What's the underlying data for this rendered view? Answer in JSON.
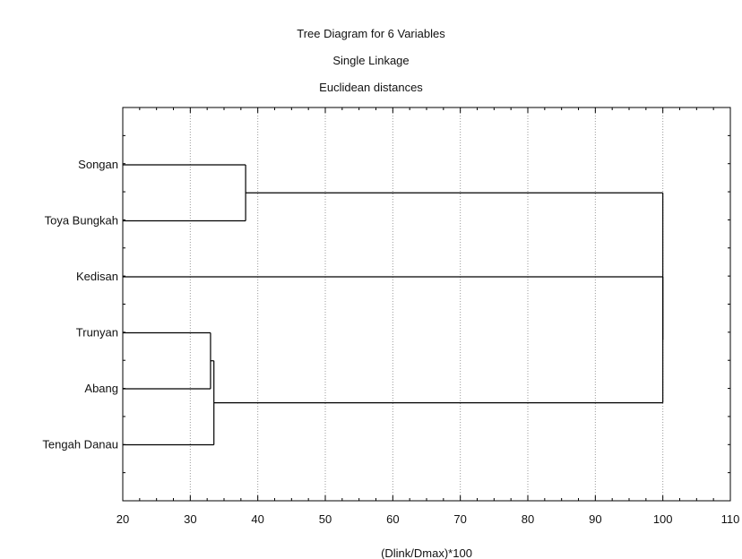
{
  "chart_data": {
    "type": "dendrogram",
    "title": "Tree Diagram for 6   Variables",
    "subtitle_lines": [
      "Single Linkage",
      "Euclidean distances"
    ],
    "xlabel": "(Dlink/Dmax)*100",
    "xlim": [
      20,
      110
    ],
    "xticks": [
      20,
      30,
      40,
      50,
      60,
      70,
      80,
      90,
      100,
      110
    ],
    "grid": "vertical dotted",
    "leaves": [
      "Songan",
      "Toya Bungkah",
      "Kedisan",
      "Trunyan",
      "Abang",
      "Tengah Danau"
    ],
    "merges": [
      {
        "left": "Trunyan",
        "right": "Abang",
        "height": 33
      },
      {
        "left": "Trunyan+Abang",
        "right": "Tengah Danau",
        "height": 33.5
      },
      {
        "left": "Songan",
        "right": "Toya Bungkah",
        "height": 38.2
      },
      {
        "left": "Kedisan",
        "right": "Trunyan+Abang+Tengah Danau",
        "height": 100
      },
      {
        "left": "Songan+Toya Bungkah",
        "right": "Kedisan+Trunyan+Abang+Tengah Danau",
        "height": 100
      }
    ]
  }
}
